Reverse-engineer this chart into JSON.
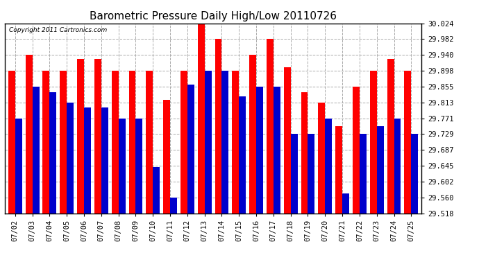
{
  "title": "Barometric Pressure Daily High/Low 20110726",
  "copyright": "Copyright 2011 Cartronics.com",
  "dates": [
    "07/02",
    "07/03",
    "07/04",
    "07/05",
    "07/06",
    "07/07",
    "07/08",
    "07/09",
    "07/10",
    "07/11",
    "07/12",
    "07/13",
    "07/14",
    "07/15",
    "07/16",
    "07/17",
    "07/18",
    "07/19",
    "07/20",
    "07/21",
    "07/22",
    "07/23",
    "07/24",
    "07/25"
  ],
  "highs": [
    29.898,
    29.94,
    29.898,
    29.898,
    29.93,
    29.93,
    29.898,
    29.898,
    29.898,
    29.82,
    29.898,
    30.024,
    29.982,
    29.898,
    29.94,
    29.982,
    29.908,
    29.84,
    29.813,
    29.75,
    29.855,
    29.898,
    29.93,
    29.898
  ],
  "lows": [
    29.771,
    29.856,
    29.84,
    29.813,
    29.8,
    29.8,
    29.771,
    29.771,
    29.64,
    29.56,
    29.86,
    29.898,
    29.898,
    29.83,
    29.856,
    29.856,
    29.729,
    29.729,
    29.771,
    29.571,
    29.729,
    29.75,
    29.771,
    29.729
  ],
  "high_color": "#ff0000",
  "low_color": "#0000cc",
  "background_color": "#ffffff",
  "grid_color": "#aaaaaa",
  "ymin": 29.518,
  "ymax": 30.024,
  "yticks": [
    29.518,
    29.56,
    29.602,
    29.645,
    29.687,
    29.729,
    29.771,
    29.813,
    29.855,
    29.898,
    29.94,
    29.982,
    30.024
  ],
  "title_fontsize": 11,
  "tick_fontsize": 7.5,
  "copyright_fontsize": 6.5
}
